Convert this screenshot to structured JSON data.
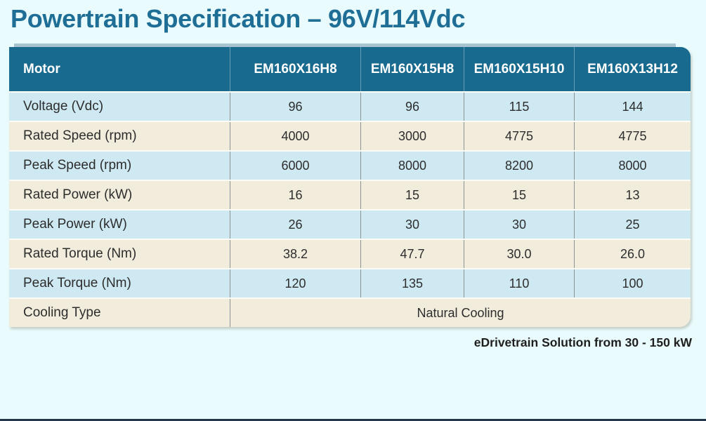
{
  "page": {
    "title": "Powertrain Specification – 96V/114Vdc",
    "footnote": "eDrivetrain Solution from 30 - 150 kW"
  },
  "table": {
    "header": [
      "Motor",
      "EM160X16H8",
      "EM160X15H8",
      "EM160X15H10",
      "EM160X13H12"
    ],
    "rows": [
      {
        "label": "Voltage (Vdc)",
        "values": [
          "96",
          "96",
          "115",
          "144"
        ]
      },
      {
        "label": "Rated Speed (rpm)",
        "values": [
          "4000",
          "3000",
          "4775",
          "4775"
        ]
      },
      {
        "label": "Peak Speed (rpm)",
        "values": [
          "6000",
          "8000",
          "8200",
          "8000"
        ]
      },
      {
        "label": "Rated Power (kW)",
        "values": [
          "16",
          "15",
          "15",
          "13"
        ]
      },
      {
        "label": "Peak Power (kW)",
        "values": [
          "26",
          "30",
          "30",
          "25"
        ]
      },
      {
        "label": "Rated Torque (Nm)",
        "values": [
          "38.2",
          "47.7",
          "30.0",
          "26.0"
        ]
      },
      {
        "label": "Peak Torque (Nm)",
        "values": [
          "120",
          "135",
          "110",
          "100"
        ]
      }
    ],
    "spanning_row": {
      "label": "Cooling Type",
      "value": "Natural Cooling"
    }
  },
  "colors": {
    "page_bg": "#e9fbfd",
    "title": "#1e6e96",
    "header_bg": "#186a8e",
    "header_text": "#ffffff",
    "row_blue": "#cfe9f3",
    "row_cream": "#f1ecdc",
    "accent_line": "#a7c3cf",
    "bottom_bar": "#223749",
    "cell_text": "#2d2d2d"
  }
}
